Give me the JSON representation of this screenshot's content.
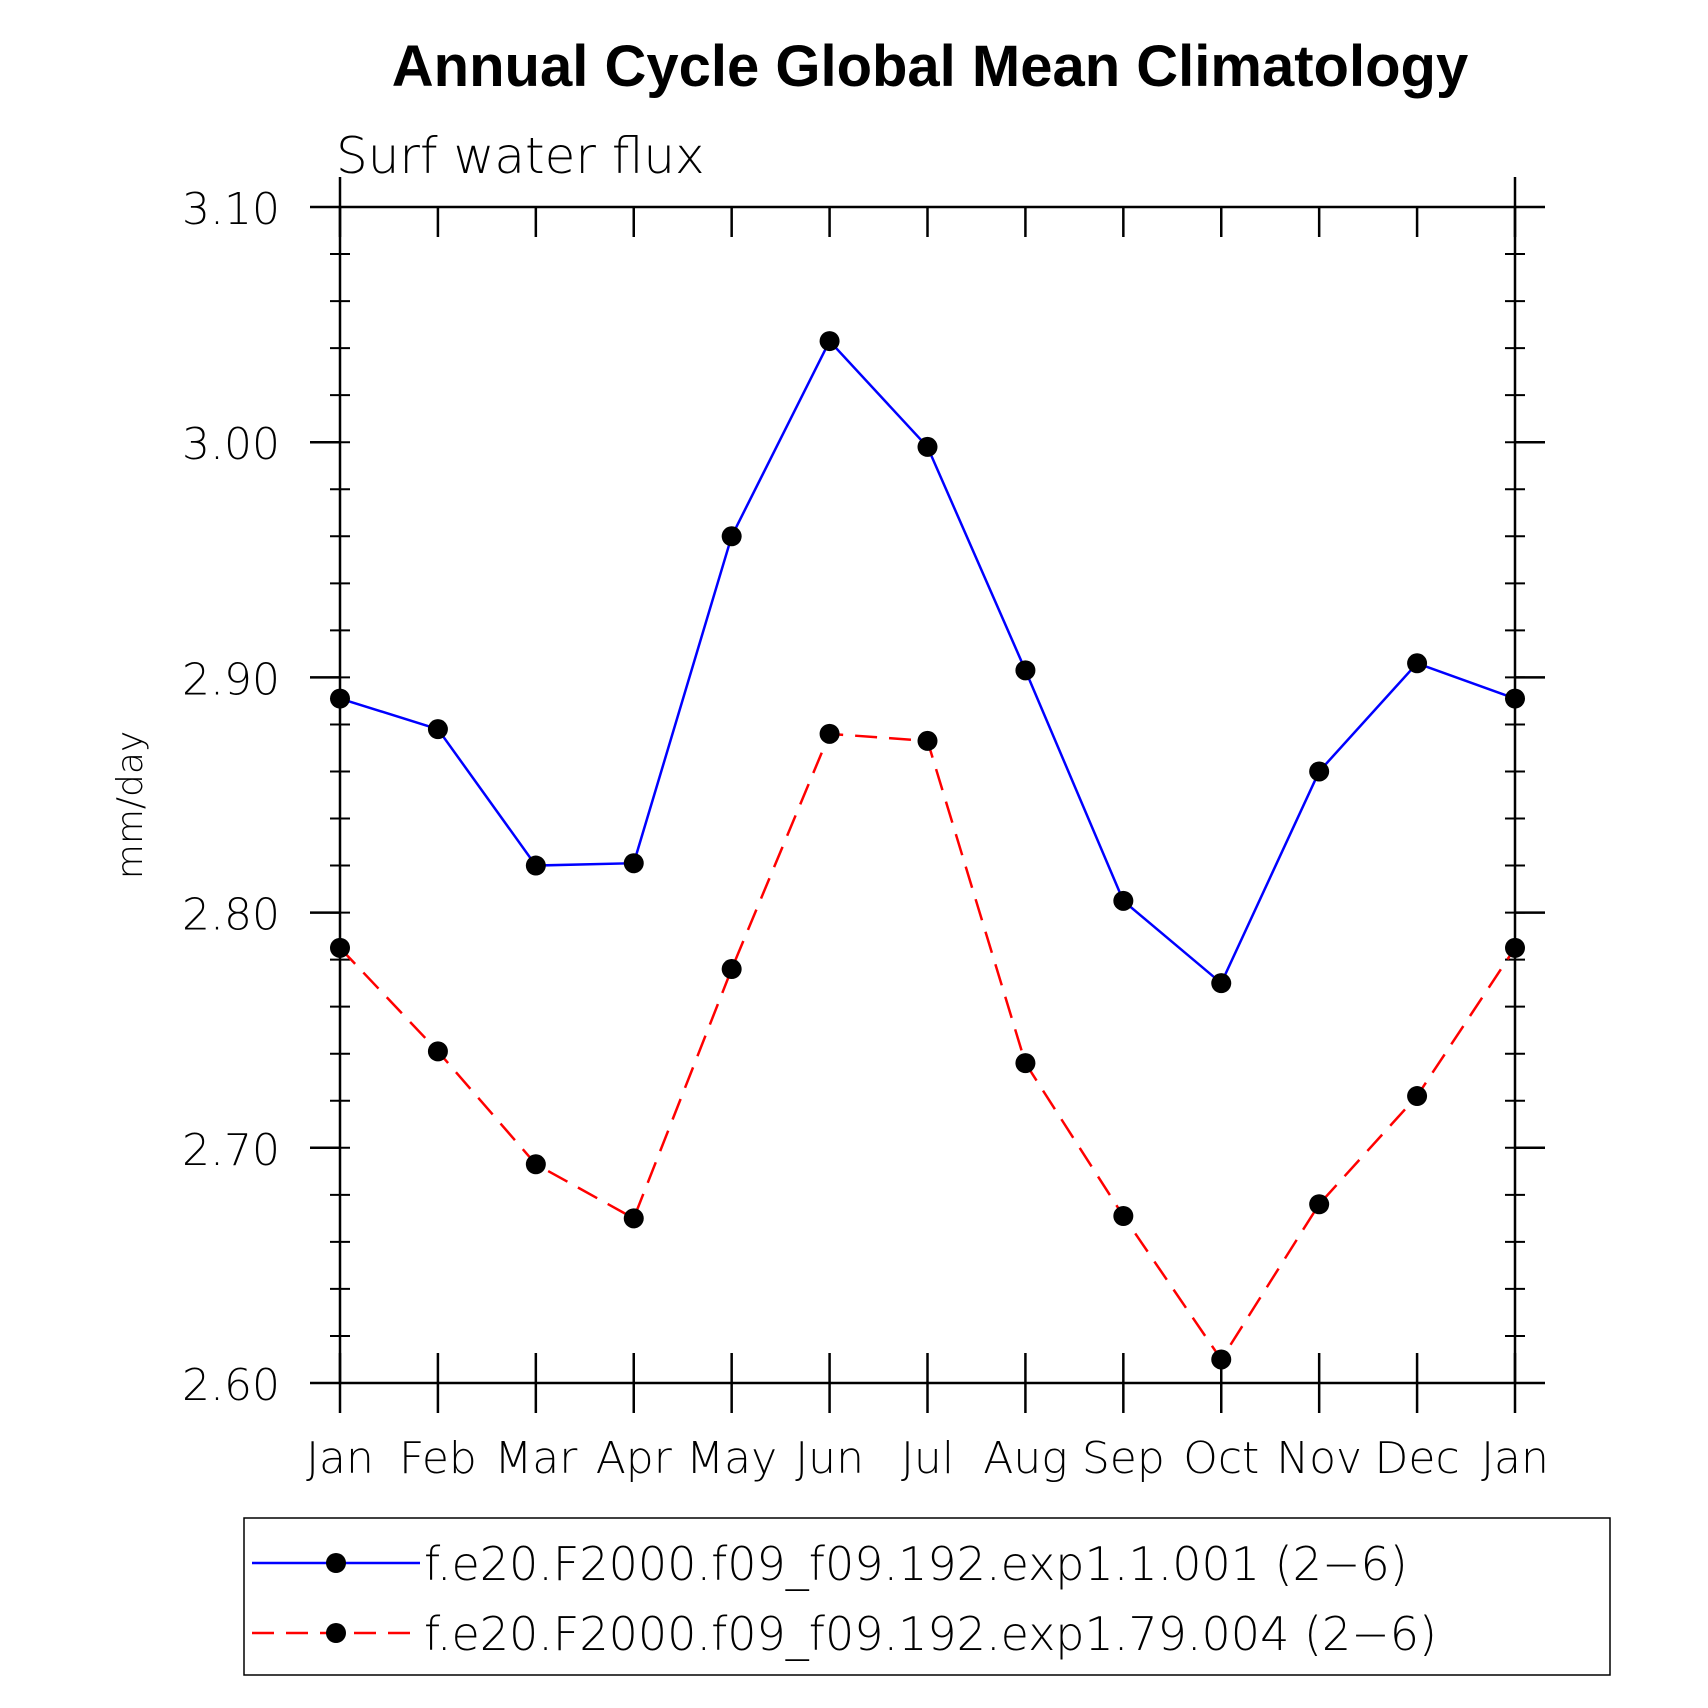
{
  "chart_data": {
    "type": "line",
    "title": "Annual Cycle Global Mean Climatology",
    "subtitle": "Surf water flux",
    "xlabel": "",
    "ylabel": "mm/day",
    "categories": [
      "Jan",
      "Feb",
      "Mar",
      "Apr",
      "May",
      "Jun",
      "Jul",
      "Aug",
      "Sep",
      "Oct",
      "Nov",
      "Dec",
      "Jan"
    ],
    "ylim": [
      2.6,
      3.1
    ],
    "yticks": [
      "2.60",
      "2.70",
      "2.80",
      "2.90",
      "3.00",
      "3.10"
    ],
    "ytick_values": [
      2.6,
      2.7,
      2.8,
      2.9,
      3.0,
      3.1
    ],
    "minor_step": 0.02,
    "legend_position": "bottom",
    "series": [
      {
        "name": "f.e20.F2000.f09_f09.192.exp1.1.001 (2−6)",
        "color": "#0000ff",
        "dash": "solid",
        "marker": "filled-circle",
        "values": [
          2.891,
          2.878,
          2.82,
          2.821,
          2.96,
          3.043,
          2.998,
          2.903,
          2.805,
          2.77,
          2.86,
          2.906,
          2.891
        ]
      },
      {
        "name": "f.e20.F2000.f09_f09.192.exp1.79.004 (2−6)",
        "color": "#ff0000",
        "dash": "dashed",
        "marker": "filled-circle",
        "values": [
          2.785,
          2.741,
          2.693,
          2.67,
          2.776,
          2.876,
          2.873,
          2.736,
          2.671,
          2.61,
          2.676,
          2.722,
          2.785
        ]
      }
    ]
  }
}
